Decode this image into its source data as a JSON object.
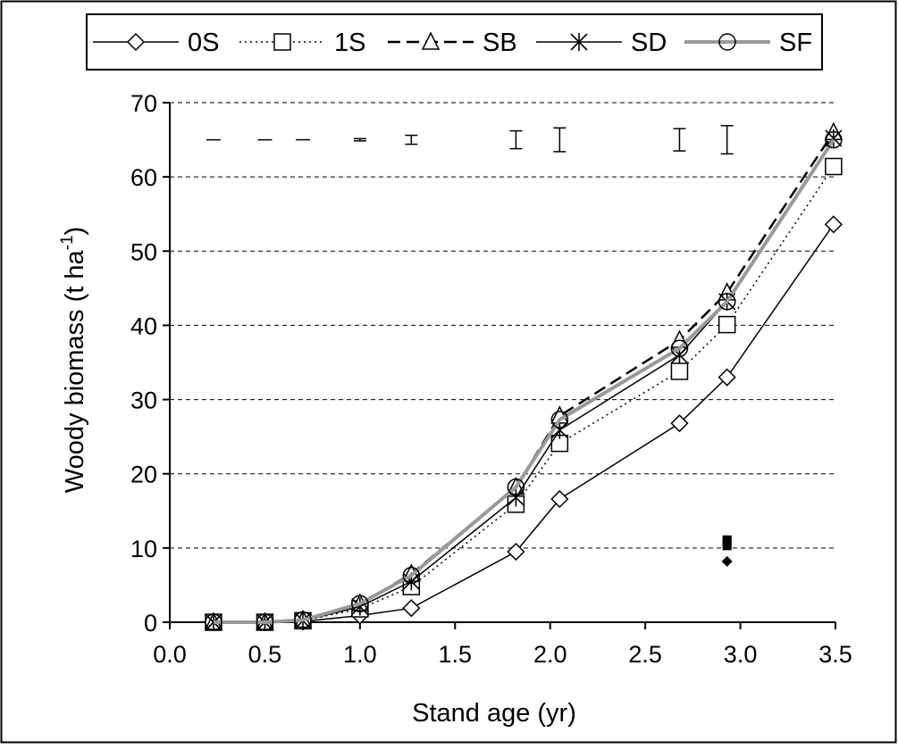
{
  "chart_data": {
    "type": "line",
    "xlabel": "Stand age (yr)",
    "ylabel_main": "Woody biomass (t ha",
    "ylabel_sup": "-1",
    "ylabel_close": ")",
    "xlim": [
      0.0,
      3.5
    ],
    "ylim": [
      0,
      70
    ],
    "x_ticks": [
      0.0,
      0.5,
      1.0,
      1.5,
      2.0,
      2.5,
      3.0,
      3.5
    ],
    "x_tick_labels": [
      "0.0",
      "0.5",
      "1.0",
      "1.5",
      "2.0",
      "2.5",
      "3.0",
      "3.5"
    ],
    "y_ticks": [
      0,
      10,
      20,
      30,
      40,
      50,
      60,
      70
    ],
    "y_tick_labels": [
      "0",
      "10",
      "20",
      "30",
      "40",
      "50",
      "60",
      "70"
    ],
    "grid": "horizontal dashed",
    "legend_position": "top",
    "x": [
      0.23,
      0.5,
      0.7,
      1.0,
      1.27,
      1.82,
      2.05,
      2.68,
      2.93,
      3.49
    ],
    "series": [
      {
        "name": "0S",
        "marker": "diamond",
        "line": "solid",
        "color": "#000000",
        "values": [
          0,
          0,
          0.1,
          0.9,
          1.9,
          9.5,
          16.6,
          26.8,
          33.0,
          53.6
        ]
      },
      {
        "name": "1S",
        "marker": "square",
        "line": "dotted",
        "color": "#000000",
        "values": [
          0,
          0,
          0.2,
          1.8,
          4.8,
          15.9,
          24.1,
          33.8,
          40.1,
          61.4
        ]
      },
      {
        "name": "SB",
        "marker": "triangle",
        "line": "dashed",
        "color": "#000000",
        "values": [
          0,
          0,
          0.3,
          2.5,
          6.5,
          18.2,
          27.8,
          38.0,
          44.4,
          66.0
        ]
      },
      {
        "name": "SD",
        "marker": "asterisk",
        "line": "solid",
        "color": "#000000",
        "values": [
          0,
          0,
          0.2,
          2.1,
          5.5,
          16.8,
          25.9,
          36.0,
          43.2,
          65.2
        ]
      },
      {
        "name": "SF",
        "marker": "circle",
        "line": "solid-thick",
        "color": "#999999",
        "values": [
          0,
          0,
          0.3,
          2.5,
          6.3,
          18.2,
          27.3,
          36.9,
          43.2,
          65.0
        ]
      }
    ],
    "error_bars": {
      "y_center": 65,
      "x": [
        0.23,
        0.5,
        0.7,
        1.0,
        1.27,
        1.82,
        2.05,
        2.68,
        2.93
      ],
      "half_range": [
        0,
        0,
        0,
        0.15,
        0.6,
        1.2,
        1.6,
        1.5,
        1.9
      ]
    },
    "extra_points": {
      "x": 2.93,
      "values": [
        8.2,
        10.3,
        10.8,
        11.1
      ]
    }
  }
}
